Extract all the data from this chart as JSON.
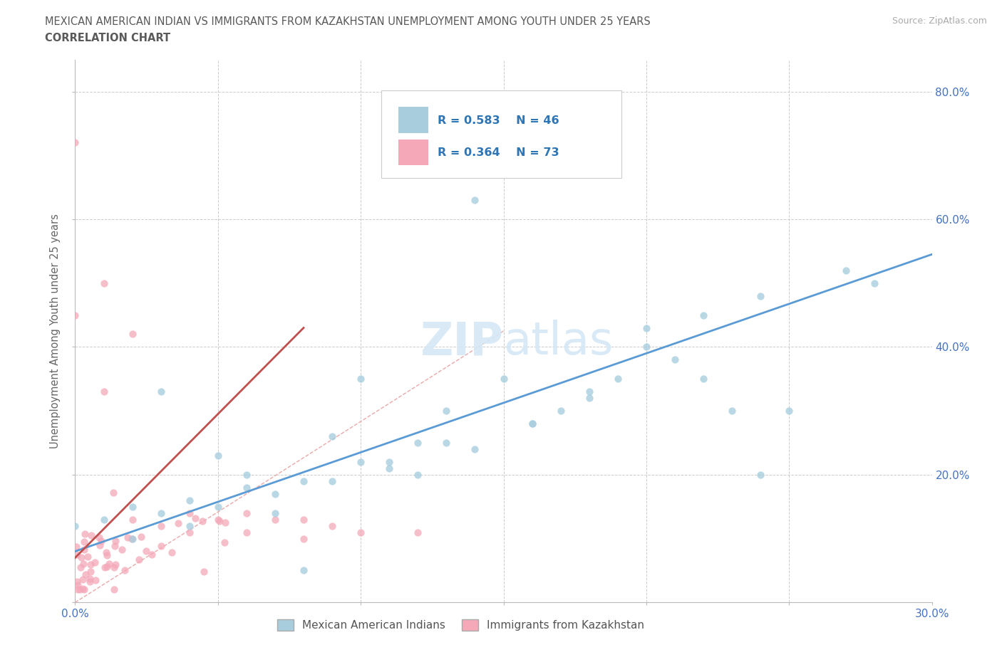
{
  "title_line1": "MEXICAN AMERICAN INDIAN VS IMMIGRANTS FROM KAZAKHSTAN UNEMPLOYMENT AMONG YOUTH UNDER 25 YEARS",
  "title_line2": "CORRELATION CHART",
  "source": "Source: ZipAtlas.com",
  "ylabel": "Unemployment Among Youth under 25 years",
  "xmin": 0.0,
  "xmax": 0.3,
  "ymin": 0.0,
  "ymax": 0.85,
  "blue_R": 0.583,
  "blue_N": 46,
  "pink_R": 0.364,
  "pink_N": 73,
  "blue_color": "#A8CEDE",
  "pink_color": "#F4A8B8",
  "blue_line_color": "#5B9BD5",
  "pink_line_color": "#C0504D",
  "diagonal_color": "#E8A0A0",
  "watermark_color": "#D5E8F5",
  "legend_text_color": "#2E75B6",
  "axis_label_color": "#4472C4",
  "title_color": "#595959"
}
